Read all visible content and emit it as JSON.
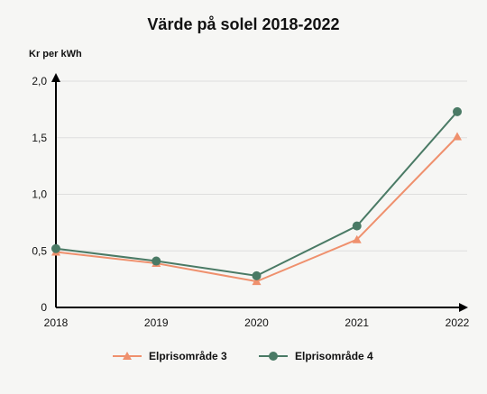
{
  "chart_data": {
    "type": "line",
    "title": "Värde på solel 2018-2022",
    "ylabel": "Kr per kWh",
    "xlabel": "",
    "categories": [
      "2018",
      "2019",
      "2020",
      "2021",
      "2022"
    ],
    "ylim": [
      0,
      2.0
    ],
    "yticks": [
      "0",
      "0,5",
      "1,0",
      "1,5",
      "2,0"
    ],
    "ytick_values": [
      0,
      0.5,
      1.0,
      1.5,
      2.0
    ],
    "grid": true,
    "legend_position": "bottom",
    "series": [
      {
        "name": "Elprisområde 3",
        "values": [
          0.49,
          0.39,
          0.23,
          0.6,
          1.51
        ],
        "color": "#ef906d",
        "marker": "triangle"
      },
      {
        "name": "Elprisområde 4",
        "values": [
          0.52,
          0.41,
          0.28,
          0.72,
          1.73
        ],
        "color": "#4a7a65",
        "marker": "circle"
      }
    ]
  }
}
